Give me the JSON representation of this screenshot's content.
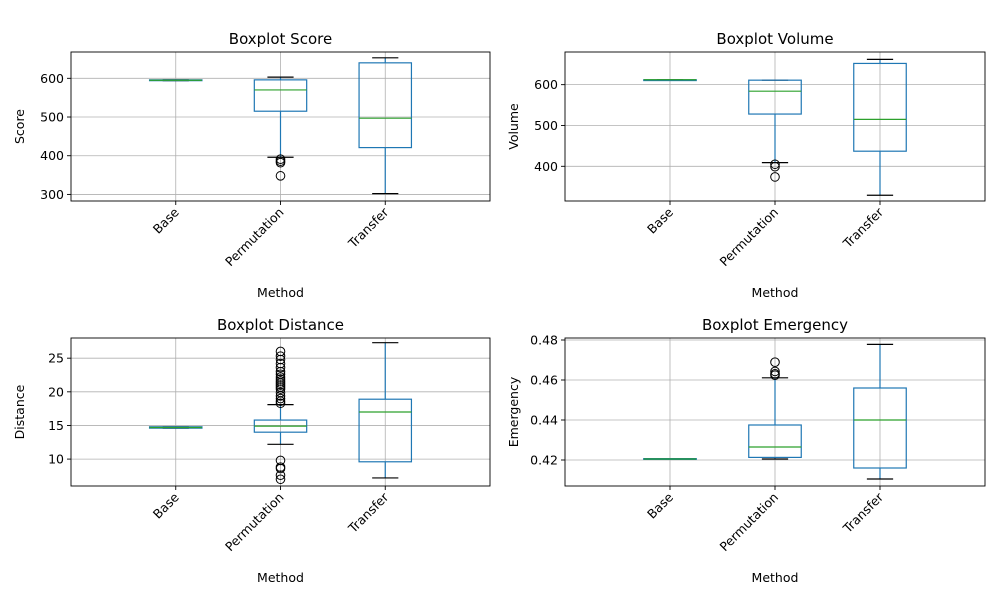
{
  "chart_data": [
    {
      "type": "box",
      "title": "Boxplot Score",
      "xlabel": "Method",
      "ylabel": "Score",
      "categories": [
        "Base",
        "Permutation",
        "Transfer"
      ],
      "ylim": [
        283,
        668
      ],
      "yticks": [
        300,
        400,
        500,
        600
      ],
      "grid": true,
      "boxes": [
        {
          "category": "Base",
          "whislo": 594,
          "q1": 594,
          "med": 595,
          "q3": 596,
          "whishi": 596,
          "fliers": []
        },
        {
          "category": "Permutation",
          "whislo": 396,
          "q1": 515,
          "med": 570,
          "q3": 596,
          "whishi": 603,
          "fliers": [
            391,
            386,
            382,
            348
          ]
        },
        {
          "category": "Transfer",
          "whislo": 302,
          "q1": 421,
          "med": 497,
          "q3": 640,
          "whishi": 653,
          "fliers": []
        }
      ]
    },
    {
      "type": "box",
      "title": "Boxplot Volume",
      "xlabel": "Method",
      "ylabel": "Volume",
      "categories": [
        "Base",
        "Permutation",
        "Transfer"
      ],
      "ylim": [
        315,
        680
      ],
      "yticks": [
        400,
        500,
        600
      ],
      "grid": true,
      "boxes": [
        {
          "category": "Base",
          "whislo": 611,
          "q1": 611,
          "med": 612,
          "q3": 612,
          "whishi": 612,
          "fliers": []
        },
        {
          "category": "Permutation",
          "whislo": 409,
          "q1": 528,
          "med": 584,
          "q3": 611,
          "whishi": 611,
          "fliers": [
            405,
            399,
            374
          ]
        },
        {
          "category": "Transfer",
          "whislo": 329,
          "q1": 437,
          "med": 515,
          "q3": 652,
          "whishi": 662,
          "fliers": []
        }
      ]
    },
    {
      "type": "box",
      "title": "Boxplot Distance",
      "xlabel": "Method",
      "ylabel": "Distance",
      "categories": [
        "Base",
        "Permutation",
        "Transfer"
      ],
      "ylim": [
        6,
        28
      ],
      "yticks": [
        10,
        15,
        20,
        25
      ],
      "grid": true,
      "boxes": [
        {
          "category": "Base",
          "whislo": 14.6,
          "q1": 14.6,
          "med": 14.7,
          "q3": 14.8,
          "whishi": 14.8,
          "fliers": []
        },
        {
          "category": "Permutation",
          "whislo": 12.2,
          "q1": 14.0,
          "med": 14.9,
          "q3": 15.8,
          "whishi": 18.1,
          "fliers": [
            26.0,
            25.3,
            24.8,
            24.2,
            23.6,
            23.0,
            22.6,
            22.2,
            21.9,
            21.6,
            21.3,
            21.0,
            20.7,
            20.4,
            19.9,
            19.4,
            19.0,
            18.6,
            18.3,
            9.8,
            8.8,
            8.6,
            7.6,
            7.0
          ]
        },
        {
          "category": "Transfer",
          "whislo": 7.2,
          "q1": 9.6,
          "med": 17.0,
          "q3": 18.9,
          "whishi": 27.3,
          "fliers": []
        }
      ]
    },
    {
      "type": "box",
      "title": "Boxplot Emergency",
      "xlabel": "Method",
      "ylabel": "Emergency",
      "categories": [
        "Base",
        "Permutation",
        "Transfer"
      ],
      "ylim": [
        0.407,
        0.481
      ],
      "yticks": [
        0.42,
        0.44,
        0.46,
        0.48
      ],
      "yticklabels": [
        "0.42",
        "0.44",
        "0.46",
        "0.48"
      ],
      "grid": true,
      "boxes": [
        {
          "category": "Base",
          "whislo": 0.4203,
          "q1": 0.4203,
          "med": 0.4205,
          "q3": 0.4207,
          "whishi": 0.4207,
          "fliers": []
        },
        {
          "category": "Permutation",
          "whislo": 0.4205,
          "q1": 0.4213,
          "med": 0.4265,
          "q3": 0.4375,
          "whishi": 0.4611,
          "fliers": [
            0.4689,
            0.4643,
            0.4631,
            0.4624
          ]
        },
        {
          "category": "Transfer",
          "whislo": 0.4105,
          "q1": 0.416,
          "med": 0.44,
          "q3": 0.456,
          "whishi": 0.4778,
          "fliers": []
        }
      ]
    }
  ]
}
